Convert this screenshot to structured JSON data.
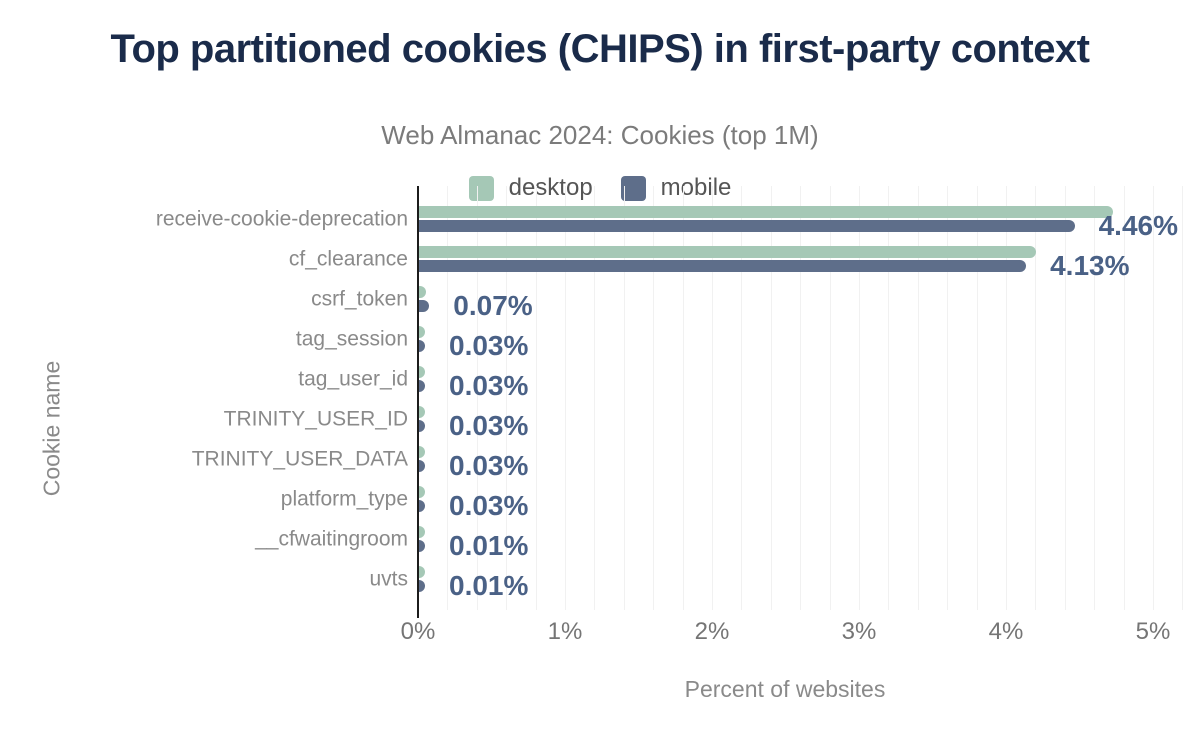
{
  "title": "Top partitioned cookies (CHIPS) in first-party context",
  "subtitle": "Web Almanac 2024: Cookies (top 1M)",
  "colors": {
    "desktop": "#a5c8b6",
    "mobile": "#5e6e8a",
    "title": "#1a2b4a",
    "value_label": "#4a6186",
    "axis_text": "#8a8a8a",
    "grid": "#f1f1f1"
  },
  "chart_data": {
    "type": "bar",
    "orientation": "horizontal",
    "title": "Top partitioned cookies (CHIPS) in first-party context",
    "subtitle": "Web Almanac 2024: Cookies (top 1M)",
    "xlabel": "Percent of websites",
    "ylabel": "Cookie name",
    "xlim": [
      0,
      5
    ],
    "grid": "minor-vertical",
    "minor_grid_step": 0.2,
    "legend_position": "top",
    "categories": [
      "receive-cookie-deprecation",
      "cf_clearance",
      "csrf_token",
      "tag_session",
      "tag_user_id",
      "TRINITY_USER_ID",
      "TRINITY_USER_DATA",
      "platform_type",
      "__cfwaitingroom",
      "uvts"
    ],
    "series": [
      {
        "name": "desktop",
        "color": "#a5c8b6",
        "values": [
          4.72,
          4.2,
          0.05,
          0.03,
          0.03,
          0.03,
          0.03,
          0.03,
          0.01,
          0.01
        ]
      },
      {
        "name": "mobile",
        "color": "#5e6e8a",
        "values": [
          4.46,
          4.13,
          0.07,
          0.03,
          0.03,
          0.03,
          0.03,
          0.03,
          0.01,
          0.01
        ]
      }
    ],
    "value_labels": [
      "4.46%",
      "4.13%",
      "0.07%",
      "0.03%",
      "0.03%",
      "0.03%",
      "0.03%",
      "0.03%",
      "0.01%",
      "0.01%"
    ],
    "xticks": [
      {
        "value": 0,
        "label": "0%"
      },
      {
        "value": 1,
        "label": "1%"
      },
      {
        "value": 2,
        "label": "2%"
      },
      {
        "value": 3,
        "label": "3%"
      },
      {
        "value": 4,
        "label": "4%"
      },
      {
        "value": 5,
        "label": "5%"
      }
    ]
  }
}
